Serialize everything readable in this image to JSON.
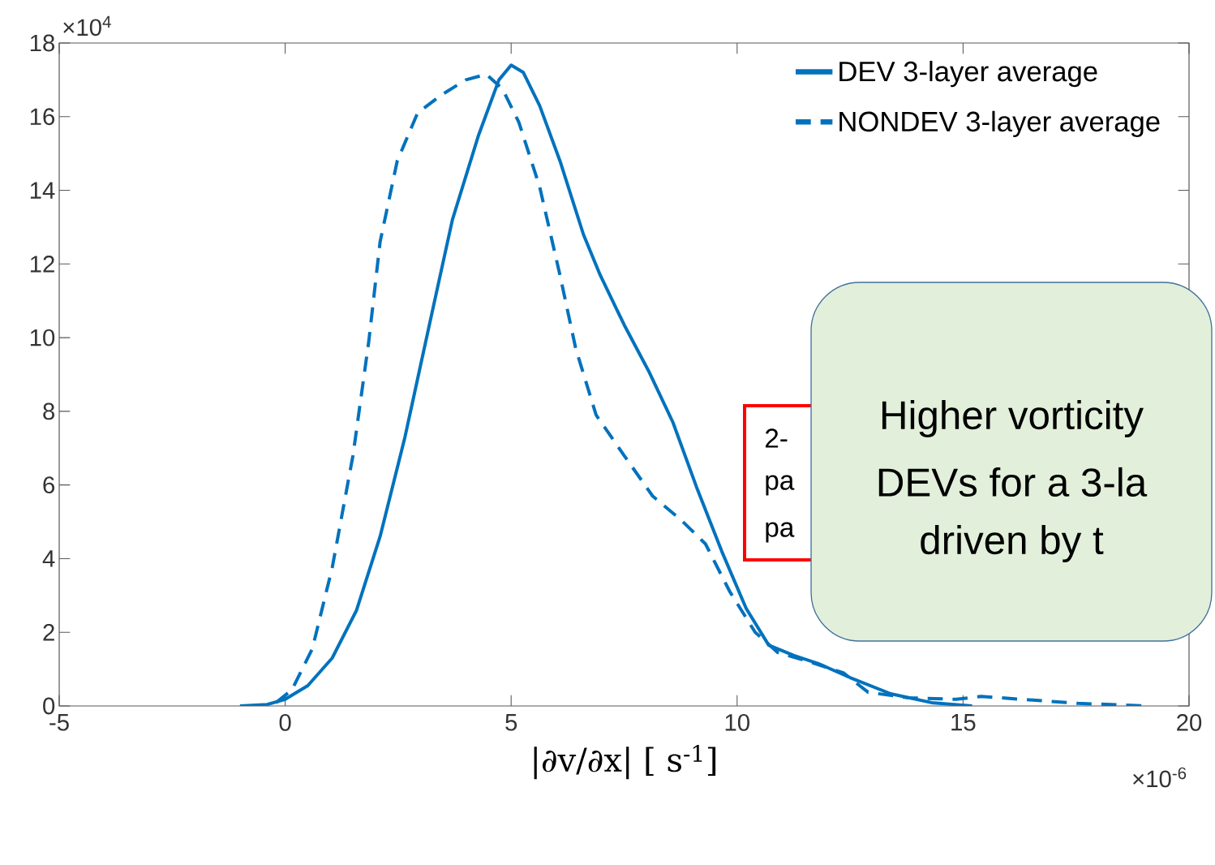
{
  "chart_data": {
    "type": "line",
    "xlabel": "|∂v/∂x|      [ s$^{-1}$]",
    "xlim": [
      -5,
      20
    ],
    "xticks": [
      -5,
      0,
      5,
      10,
      15,
      20
    ],
    "ylim": [
      0,
      18
    ],
    "yticks": [
      0,
      2,
      4,
      6,
      8,
      10,
      12,
      14,
      16,
      18
    ],
    "legend": "top right",
    "marker": "none",
    "grid": false,
    "series": [
      {
        "name": "DEV 3-layer average",
        "color": "#0072bd",
        "line_style": "solid",
        "x": [
          -1,
          -0.4,
          0,
          0.5,
          1.04,
          1.58,
          2.1,
          2.65,
          3.2,
          3.7,
          4.28,
          4.73,
          5.0,
          5.27,
          5.63,
          6.08,
          6.6,
          6.97,
          7.5,
          8.04,
          8.58,
          9.1,
          9.66,
          10.2,
          10.7,
          11.26,
          11.8,
          12.5,
          13.4,
          14.3,
          15.2
        ],
        "values": [
          0,
          0.04,
          0.18,
          0.55,
          1.3,
          2.6,
          4.6,
          7.3,
          10.4,
          13.2,
          15.5,
          17.0,
          17.4,
          17.2,
          16.3,
          14.8,
          12.8,
          11.7,
          10.35,
          9.1,
          7.7,
          5.95,
          4.2,
          2.65,
          1.65,
          1.37,
          1.15,
          0.77,
          0.33,
          0.09,
          0
        ]
      },
      {
        "name": "NONDEV 3-layer average",
        "color": "#0072bd",
        "line_style": "dashed",
        "x": [
          -0.2,
          0.15,
          0.6,
          1.04,
          1.5,
          1.85,
          2.1,
          2.48,
          2.93,
          3.47,
          4.0,
          4.45,
          4.81,
          5.17,
          5.63,
          6.08,
          6.43,
          6.88,
          7.5,
          8.13,
          8.76,
          9.3,
          9.84,
          10.4,
          10.9,
          11.6,
          12.35,
          12.9,
          13.8,
          14.85,
          15.4,
          16.3,
          17.55,
          19.1
        ],
        "values": [
          0.09,
          0.44,
          1.55,
          3.75,
          6.8,
          9.9,
          12.6,
          14.8,
          16.1,
          16.6,
          17.0,
          17.15,
          16.75,
          15.85,
          14.1,
          11.7,
          9.7,
          7.9,
          6.8,
          5.7,
          5.05,
          4.4,
          3.1,
          2.0,
          1.45,
          1.2,
          0.9,
          0.37,
          0.22,
          0.18,
          0.26,
          0.18,
          0.07,
          0.0
        ]
      }
    ],
    "annotations": [
      "×10$^{4}$",
      "×10$^{-6}$",
      "2-",
      "pa",
      "pa",
      "Higher vorticity",
      "DEVs for a 3-la",
      "driven by t"
    ]
  }
}
